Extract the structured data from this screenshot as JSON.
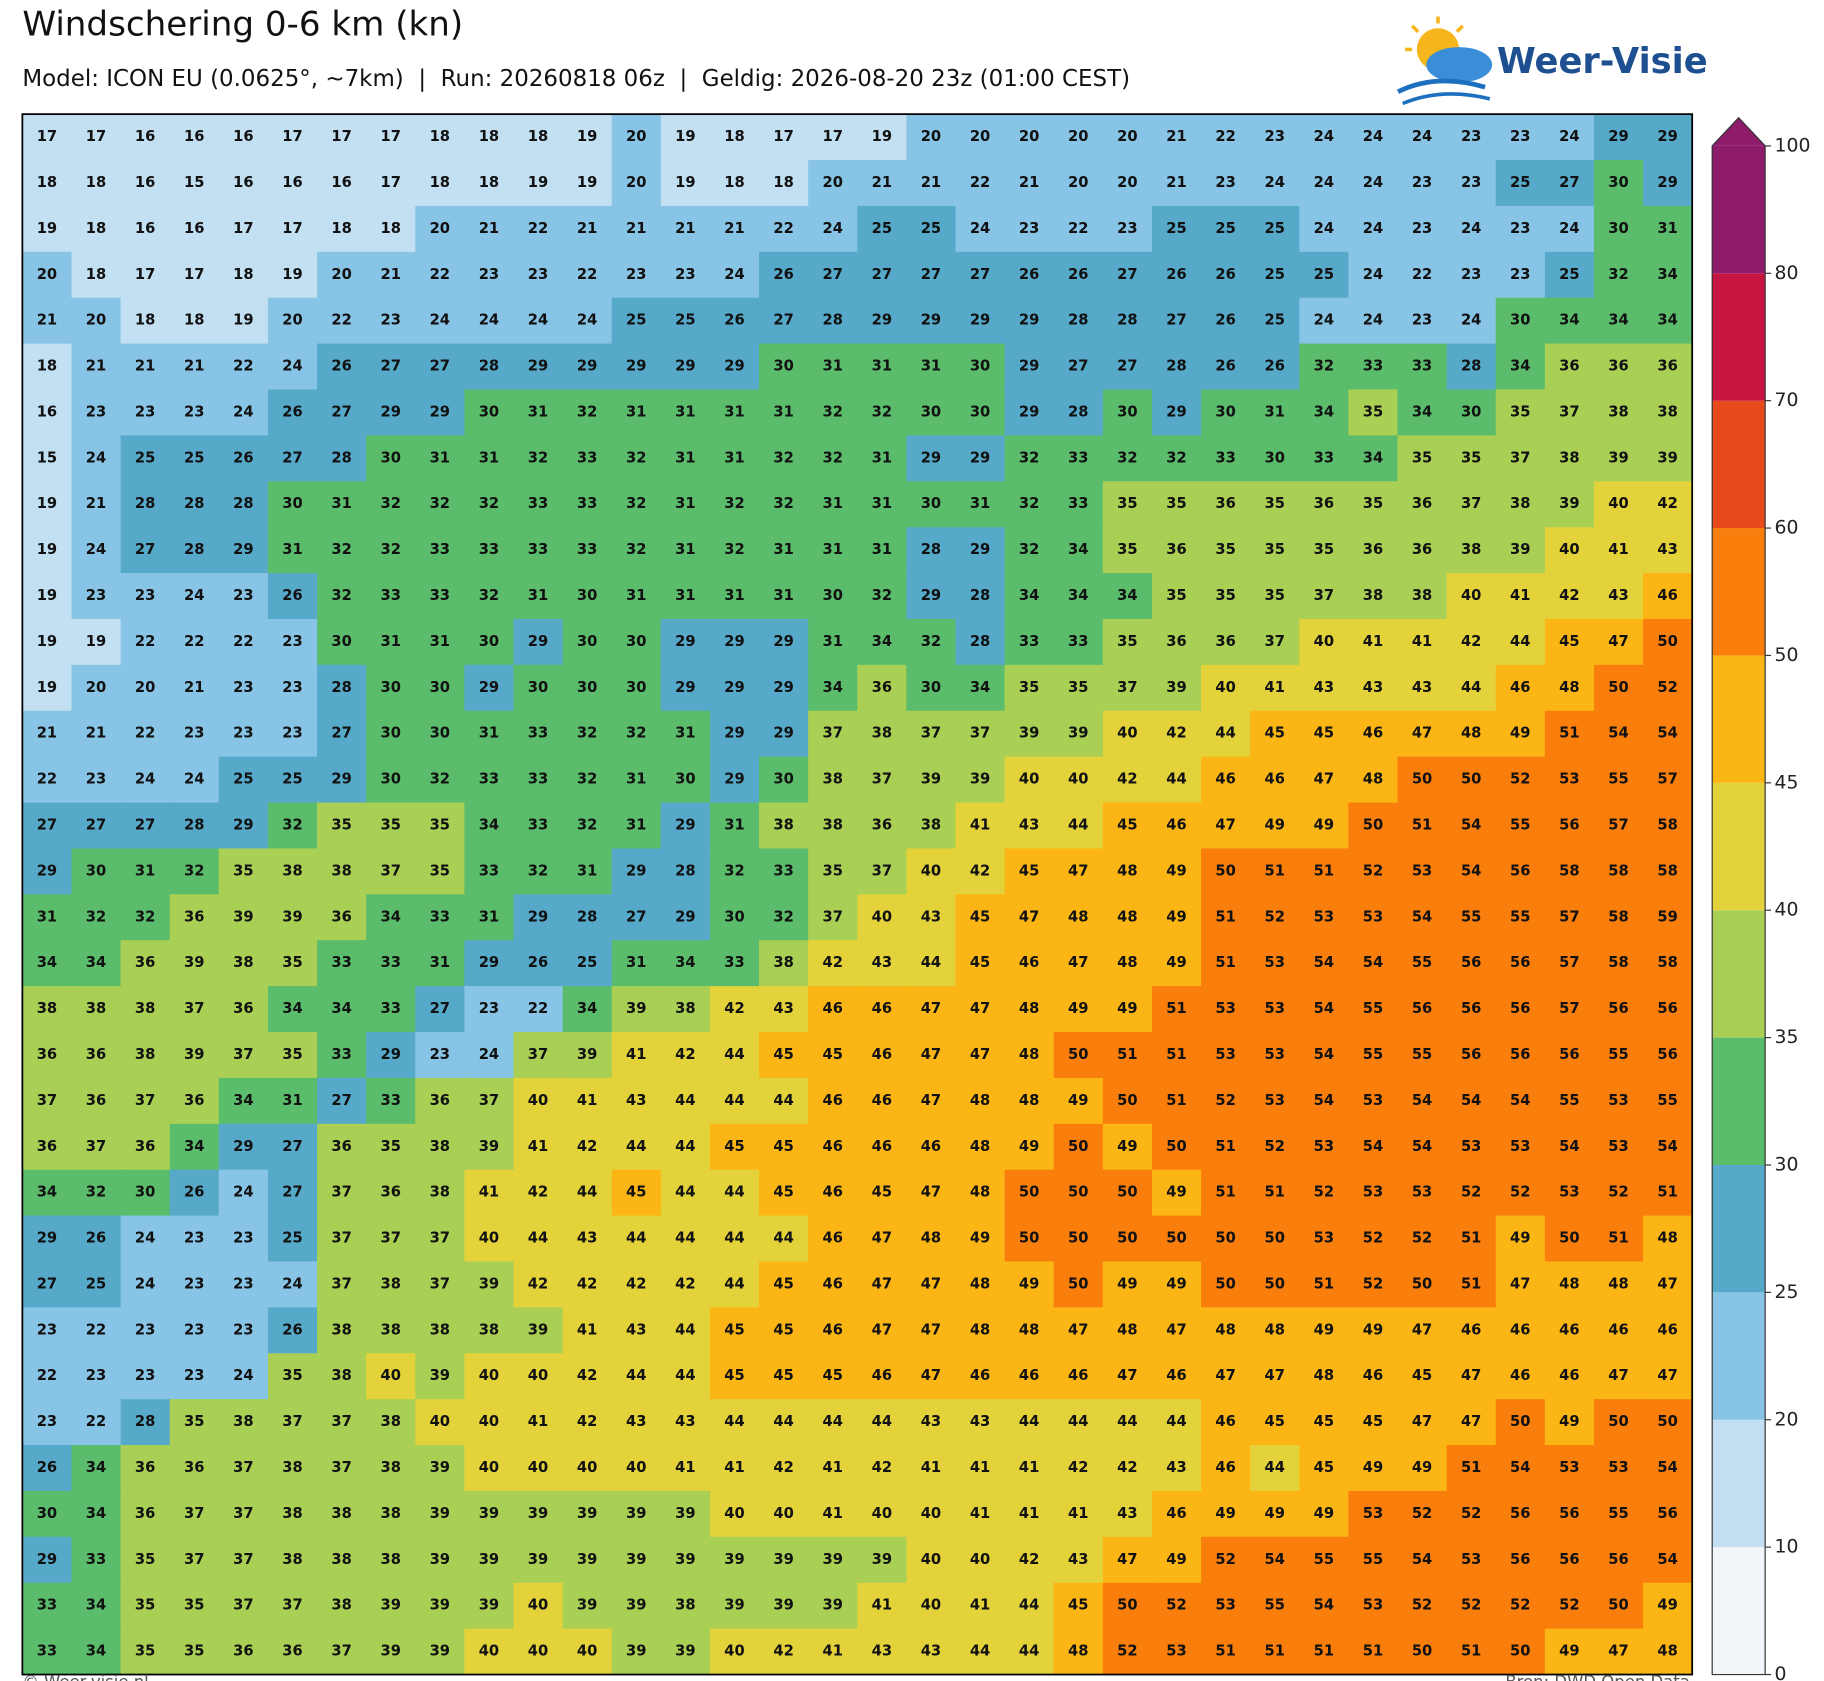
{
  "header": {
    "title": "Windschering 0-6 km (kn)",
    "subtitle": "Model: ICON EU (0.0625°, ~7km)  |  Run: 20260818 06z  |  Geldig: 2026-08-20 23z (01:00 CEST)"
  },
  "logo": "Weer-Visie",
  "grid": {
    "rows": [
      [
        17,
        17,
        16,
        16,
        16,
        17,
        17,
        17,
        18,
        18,
        18,
        19,
        20,
        19,
        18,
        17,
        17,
        19,
        20,
        20,
        20,
        20,
        20,
        21,
        22,
        23,
        24,
        24,
        24,
        23,
        23,
        24,
        29,
        29
      ],
      [
        18,
        18,
        16,
        15,
        16,
        16,
        16,
        17,
        18,
        18,
        19,
        19,
        20,
        19,
        18,
        18,
        20,
        21,
        21,
        22,
        21,
        20,
        20,
        21,
        23,
        24,
        24,
        24,
        23,
        23,
        25,
        27,
        30,
        29
      ],
      [
        19,
        18,
        16,
        16,
        17,
        17,
        18,
        18,
        20,
        21,
        22,
        21,
        21,
        21,
        21,
        22,
        24,
        25,
        25,
        24,
        23,
        22,
        23,
        25,
        25,
        25,
        24,
        24,
        23,
        24,
        23,
        24,
        30,
        31
      ],
      [
        20,
        18,
        17,
        17,
        18,
        19,
        20,
        21,
        22,
        23,
        23,
        22,
        23,
        23,
        24,
        26,
        27,
        27,
        27,
        27,
        26,
        26,
        27,
        26,
        26,
        25,
        25,
        24,
        22,
        23,
        23,
        25,
        32,
        34
      ],
      [
        21,
        20,
        18,
        18,
        19,
        20,
        22,
        23,
        24,
        24,
        24,
        24,
        25,
        25,
        26,
        27,
        28,
        29,
        29,
        29,
        29,
        28,
        28,
        27,
        26,
        25,
        24,
        24,
        23,
        24,
        30,
        34,
        34,
        34
      ],
      [
        18,
        21,
        21,
        21,
        22,
        24,
        26,
        27,
        27,
        28,
        29,
        29,
        29,
        29,
        29,
        30,
        31,
        31,
        31,
        30,
        29,
        27,
        27,
        28,
        26,
        26,
        32,
        33,
        33,
        28,
        34,
        36,
        36,
        36
      ],
      [
        16,
        23,
        23,
        23,
        24,
        26,
        27,
        29,
        29,
        30,
        31,
        32,
        31,
        31,
        31,
        31,
        32,
        32,
        30,
        30,
        29,
        28,
        30,
        29,
        30,
        31,
        34,
        35,
        34,
        30,
        35,
        37,
        38,
        38
      ],
      [
        15,
        24,
        25,
        25,
        26,
        27,
        28,
        30,
        31,
        31,
        32,
        33,
        32,
        31,
        31,
        32,
        32,
        31,
        29,
        29,
        32,
        33,
        32,
        32,
        33,
        30,
        33,
        34,
        35,
        35,
        37,
        38,
        39,
        39
      ],
      [
        19,
        21,
        28,
        28,
        28,
        30,
        31,
        32,
        32,
        32,
        33,
        33,
        32,
        31,
        32,
        32,
        31,
        31,
        30,
        31,
        32,
        33,
        35,
        35,
        36,
        35,
        36,
        35,
        36,
        37,
        38,
        39,
        40,
        42
      ],
      [
        19,
        24,
        27,
        28,
        29,
        31,
        32,
        32,
        33,
        33,
        33,
        33,
        32,
        31,
        32,
        31,
        31,
        31,
        28,
        29,
        32,
        34,
        35,
        36,
        35,
        35,
        35,
        36,
        36,
        38,
        39,
        40,
        41,
        43
      ],
      [
        19,
        23,
        23,
        24,
        23,
        26,
        32,
        33,
        33,
        32,
        31,
        30,
        31,
        31,
        31,
        31,
        30,
        32,
        29,
        28,
        34,
        34,
        34,
        35,
        35,
        35,
        37,
        38,
        38,
        40,
        41,
        42,
        43,
        46
      ],
      [
        19,
        19,
        22,
        22,
        22,
        23,
        30,
        31,
        31,
        30,
        29,
        30,
        30,
        29,
        29,
        29,
        31,
        34,
        32,
        28,
        33,
        33,
        35,
        36,
        36,
        37,
        40,
        41,
        41,
        42,
        44,
        45,
        47,
        50
      ],
      [
        19,
        20,
        20,
        21,
        23,
        23,
        28,
        30,
        30,
        29,
        30,
        30,
        30,
        29,
        29,
        29,
        34,
        36,
        30,
        34,
        35,
        35,
        37,
        39,
        40,
        41,
        43,
        43,
        43,
        44,
        46,
        48,
        50,
        52
      ],
      [
        21,
        21,
        22,
        23,
        23,
        23,
        27,
        30,
        30,
        31,
        33,
        32,
        32,
        31,
        29,
        29,
        37,
        38,
        37,
        37,
        39,
        39,
        40,
        42,
        44,
        45,
        45,
        46,
        47,
        48,
        49,
        51,
        54,
        54
      ],
      [
        22,
        23,
        24,
        24,
        25,
        25,
        29,
        30,
        32,
        33,
        33,
        32,
        31,
        30,
        29,
        30,
        38,
        37,
        39,
        39,
        40,
        40,
        42,
        44,
        46,
        46,
        47,
        48,
        50,
        50,
        52,
        53,
        55,
        57
      ],
      [
        27,
        27,
        27,
        28,
        29,
        32,
        35,
        35,
        35,
        34,
        33,
        32,
        31,
        29,
        31,
        38,
        38,
        36,
        38,
        41,
        43,
        44,
        45,
        46,
        47,
        49,
        49,
        50,
        51,
        54,
        55,
        56,
        57,
        58
      ],
      [
        29,
        30,
        31,
        32,
        35,
        38,
        38,
        37,
        35,
        33,
        32,
        31,
        29,
        28,
        32,
        33,
        35,
        37,
        40,
        42,
        45,
        47,
        48,
        49,
        50,
        51,
        51,
        52,
        53,
        54,
        56,
        58,
        58,
        58
      ],
      [
        31,
        32,
        32,
        36,
        39,
        39,
        36,
        34,
        33,
        31,
        29,
        28,
        27,
        29,
        30,
        32,
        37,
        40,
        43,
        45,
        47,
        48,
        48,
        49,
        51,
        52,
        53,
        53,
        54,
        55,
        55,
        57,
        58,
        59
      ],
      [
        34,
        34,
        36,
        39,
        38,
        35,
        33,
        33,
        31,
        29,
        26,
        25,
        31,
        34,
        33,
        38,
        42,
        43,
        44,
        45,
        46,
        47,
        48,
        49,
        51,
        53,
        54,
        54,
        55,
        56,
        56,
        57,
        58,
        58
      ],
      [
        38,
        38,
        38,
        37,
        36,
        34,
        34,
        33,
        27,
        23,
        22,
        34,
        39,
        38,
        42,
        43,
        46,
        46,
        47,
        47,
        48,
        49,
        49,
        51,
        53,
        53,
        54,
        55,
        56,
        56,
        56,
        57,
        56,
        56
      ],
      [
        36,
        36,
        38,
        39,
        37,
        35,
        33,
        29,
        23,
        24,
        37,
        39,
        41,
        42,
        44,
        45,
        45,
        46,
        47,
        47,
        48,
        50,
        51,
        51,
        53,
        53,
        54,
        55,
        55,
        56,
        56,
        56,
        55,
        56
      ],
      [
        37,
        36,
        37,
        36,
        34,
        31,
        27,
        33,
        36,
        37,
        40,
        41,
        43,
        44,
        44,
        44,
        46,
        46,
        47,
        48,
        48,
        49,
        50,
        51,
        52,
        53,
        54,
        53,
        54,
        54,
        54,
        55,
        53,
        55
      ],
      [
        36,
        37,
        36,
        34,
        29,
        27,
        36,
        35,
        38,
        39,
        41,
        42,
        44,
        44,
        45,
        45,
        46,
        46,
        46,
        48,
        49,
        50,
        49,
        50,
        51,
        52,
        53,
        54,
        54,
        53,
        53,
        54,
        53,
        54
      ],
      [
        34,
        32,
        30,
        26,
        24,
        27,
        37,
        36,
        38,
        41,
        42,
        44,
        45,
        44,
        44,
        45,
        46,
        45,
        47,
        48,
        50,
        50,
        50,
        49,
        51,
        51,
        52,
        53,
        53,
        52,
        52,
        53,
        52,
        51
      ],
      [
        29,
        26,
        24,
        23,
        23,
        25,
        37,
        37,
        37,
        40,
        44,
        43,
        44,
        44,
        44,
        44,
        46,
        47,
        48,
        49,
        50,
        50,
        50,
        50,
        50,
        50,
        53,
        52,
        52,
        51,
        49,
        50,
        51,
        48
      ],
      [
        27,
        25,
        24,
        23,
        23,
        24,
        37,
        38,
        37,
        39,
        42,
        42,
        42,
        42,
        44,
        45,
        46,
        47,
        47,
        48,
        49,
        50,
        49,
        49,
        50,
        50,
        51,
        52,
        50,
        51,
        47,
        48,
        48,
        47
      ],
      [
        23,
        22,
        23,
        23,
        23,
        26,
        38,
        38,
        38,
        38,
        39,
        41,
        43,
        44,
        45,
        45,
        46,
        47,
        47,
        48,
        48,
        47,
        48,
        47,
        48,
        48,
        49,
        49,
        47,
        46,
        46,
        46,
        46,
        46
      ],
      [
        22,
        23,
        23,
        23,
        24,
        35,
        38,
        40,
        39,
        40,
        40,
        42,
        44,
        44,
        45,
        45,
        45,
        46,
        47,
        46,
        46,
        46,
        47,
        46,
        47,
        47,
        48,
        46,
        45,
        47,
        46,
        46,
        47,
        47
      ],
      [
        23,
        22,
        28,
        35,
        38,
        37,
        37,
        38,
        40,
        40,
        41,
        42,
        43,
        43,
        44,
        44,
        44,
        44,
        43,
        43,
        44,
        44,
        44,
        44,
        46,
        45,
        45,
        45,
        47,
        47,
        50,
        49,
        50,
        50
      ],
      [
        26,
        34,
        36,
        36,
        37,
        38,
        37,
        38,
        39,
        40,
        40,
        40,
        40,
        41,
        41,
        42,
        41,
        42,
        41,
        41,
        41,
        42,
        42,
        43,
        46,
        44,
        45,
        49,
        49,
        51,
        54,
        53,
        53,
        54
      ],
      [
        30,
        34,
        36,
        37,
        37,
        38,
        38,
        38,
        39,
        39,
        39,
        39,
        39,
        39,
        40,
        40,
        41,
        40,
        40,
        41,
        41,
        41,
        43,
        46,
        49,
        49,
        49,
        53,
        52,
        52,
        56,
        56,
        55,
        56
      ],
      [
        29,
        33,
        35,
        37,
        37,
        38,
        38,
        38,
        39,
        39,
        39,
        39,
        39,
        39,
        39,
        39,
        39,
        39,
        40,
        40,
        42,
        43,
        47,
        49,
        52,
        54,
        55,
        55,
        54,
        53,
        56,
        56,
        56,
        54
      ],
      [
        33,
        34,
        35,
        35,
        37,
        37,
        38,
        39,
        39,
        39,
        40,
        39,
        39,
        38,
        39,
        39,
        39,
        41,
        40,
        41,
        44,
        45,
        50,
        52,
        53,
        55,
        54,
        53,
        52,
        52,
        52,
        52,
        50,
        49
      ],
      [
        33,
        34,
        35,
        35,
        36,
        36,
        37,
        39,
        39,
        40,
        40,
        40,
        39,
        39,
        40,
        42,
        41,
        43,
        43,
        44,
        44,
        48,
        52,
        53,
        51,
        51,
        51,
        51,
        50,
        51,
        50,
        49,
        47,
        48
      ]
    ]
  },
  "colorbar": {
    "ticks": [
      0,
      10,
      20,
      25,
      30,
      35,
      40,
      45,
      50,
      60,
      70,
      80,
      100
    ],
    "colors": [
      "#f1f5fa",
      "#c2e0f1",
      "#88c4e6",
      "#56a9c9",
      "#5bbd6c",
      "#a9cf55",
      "#e3d23a",
      "#fbb615",
      "#f97e0b",
      "#e84b1b",
      "#c71541",
      "#8f1b6b"
    ]
  },
  "footer": {
    "left": "© Weer-visie.nl",
    "right": "Bron: DWD Open Data"
  }
}
